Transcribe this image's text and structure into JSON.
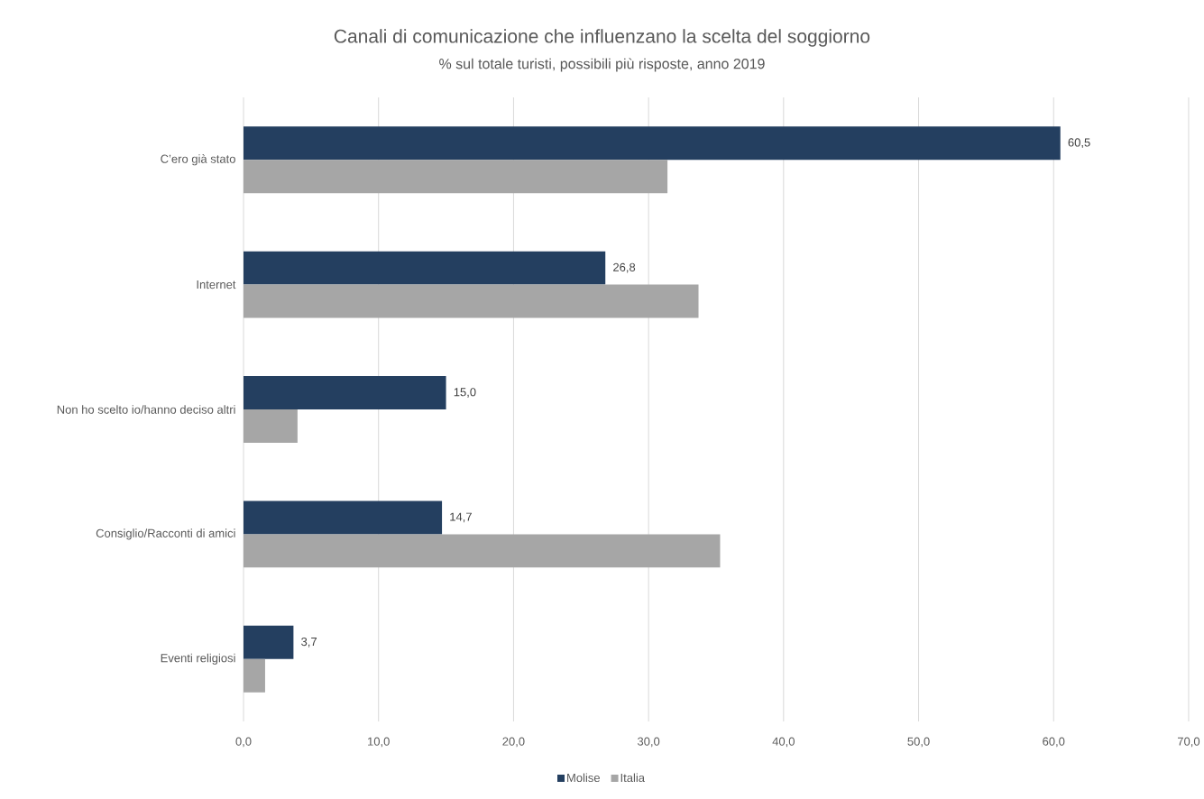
{
  "chart_data": {
    "type": "bar",
    "orientation": "horizontal",
    "title": "Canali di comunicazione che influenzano la scelta del soggiorno",
    "subtitle": "% sul totale turisti, possibili più risposte, anno 2019",
    "categories": [
      "C’ero già stato",
      "Internet",
      "Non ho scelto io/hanno deciso altri",
      "Consiglio/Racconti di amici",
      "Eventi religiosi"
    ],
    "series": [
      {
        "name": "Molise",
        "color": "#243f60",
        "values": [
          60.5,
          26.8,
          15.0,
          14.7,
          3.7
        ],
        "value_labels": [
          "60,5",
          "26,8",
          "15,0",
          "14,7",
          "3,7"
        ]
      },
      {
        "name": "Italia",
        "color": "#a6a6a6",
        "values": [
          31.4,
          33.7,
          4.0,
          35.3,
          1.6
        ]
      }
    ],
    "xlim": [
      0,
      70
    ],
    "xticks": [
      {
        "value": 0,
        "label": "0,0"
      },
      {
        "value": 10,
        "label": "10,0"
      },
      {
        "value": 20,
        "label": "20,0"
      },
      {
        "value": 30,
        "label": "30,0"
      },
      {
        "value": 40,
        "label": "40,0"
      },
      {
        "value": 50,
        "label": "50,0"
      },
      {
        "value": 60,
        "label": "60,0"
      },
      {
        "value": 70,
        "label": "70,0"
      }
    ],
    "grid": "x",
    "legend": "bottom"
  }
}
